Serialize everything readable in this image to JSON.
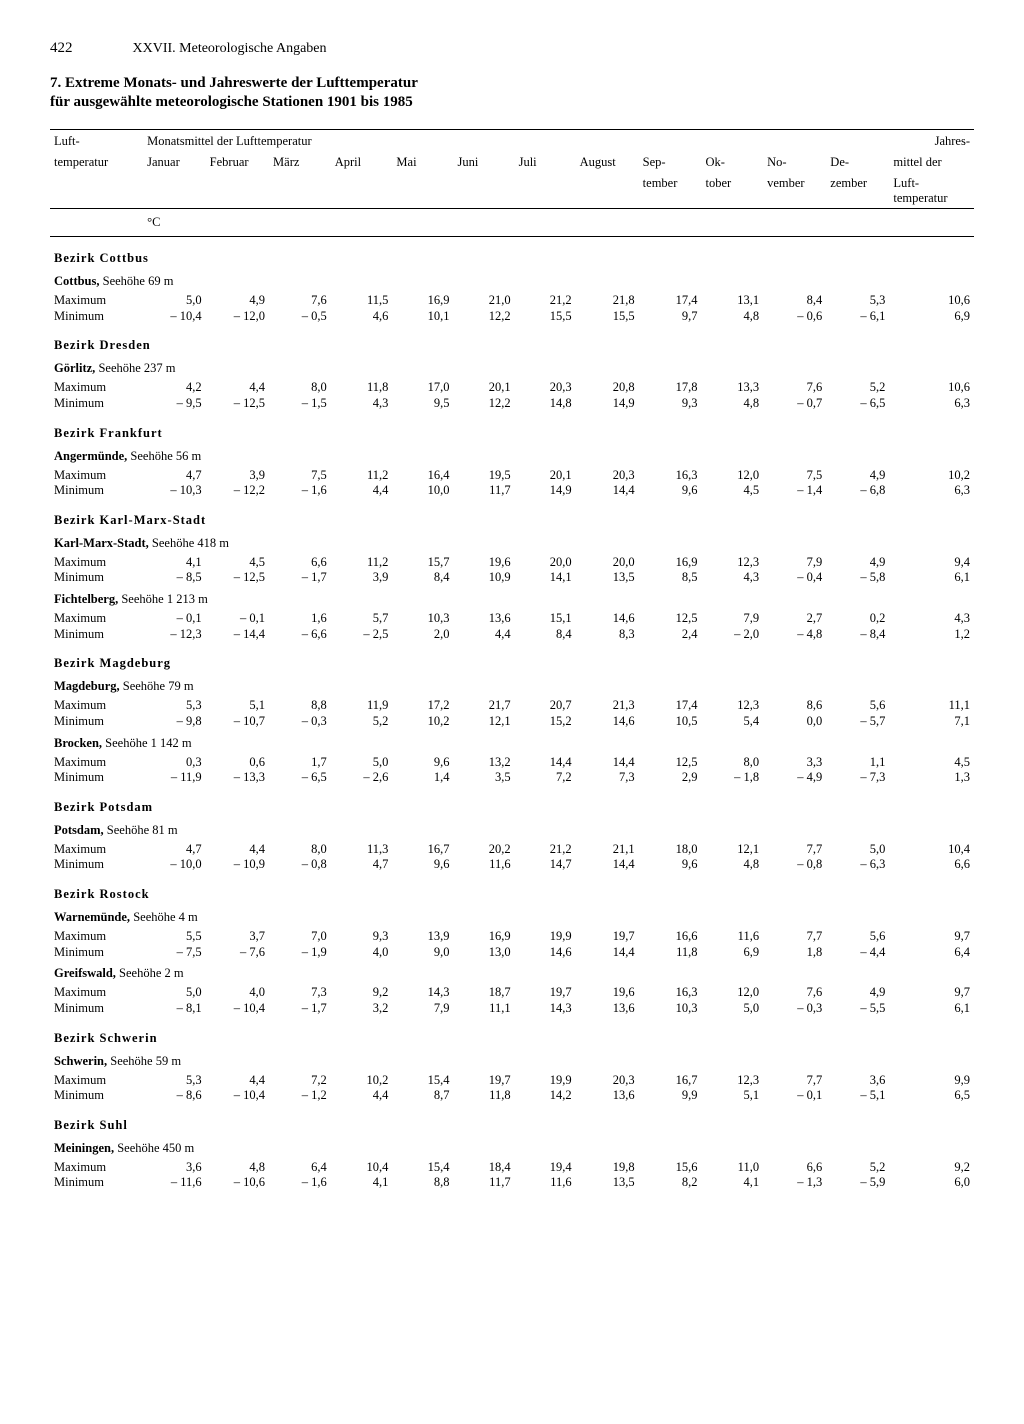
{
  "page_number": "422",
  "chapter": "XXVII. Meteorologische Angaben",
  "title_line1": "7. Extreme Monats- und Jahreswerte der Lufttemperatur",
  "title_line2": "für ausgewählte meteorologische Stationen 1901 bis 1985",
  "header": {
    "row_label": "Luft-",
    "row_label2": "temperatur",
    "group_label": "Monatsmittel der Lufttemperatur",
    "annual_label": "Jahres-",
    "annual_label2": "mittel der",
    "annual_label3": "Luft-",
    "annual_label4": "temperatur",
    "months": [
      "Januar",
      "Februar",
      "März",
      "April",
      "Mai",
      "Juni",
      "Juli",
      "August",
      "Sep-",
      "Ok-",
      "No-",
      "De-"
    ],
    "months_line2": [
      "",
      "",
      "",
      "",
      "",
      "",
      "",
      "",
      "tember",
      "tober",
      "vember",
      "zember"
    ],
    "unit": "°C"
  },
  "labels": {
    "max": "Maximum",
    "min": "Minimum"
  },
  "sections": [
    {
      "bezirk": "Bezirk Cottbus",
      "stations": [
        {
          "name": "Cottbus,",
          "elevation": "Seehöhe 69 m",
          "max": [
            "5,0",
            "4,9",
            "7,6",
            "11,5",
            "16,9",
            "21,0",
            "21,2",
            "21,8",
            "17,4",
            "13,1",
            "8,4",
            "5,3",
            "10,6"
          ],
          "min": [
            "– 10,4",
            "– 12,0",
            "– 0,5",
            "4,6",
            "10,1",
            "12,2",
            "15,5",
            "15,5",
            "9,7",
            "4,8",
            "– 0,6",
            "– 6,1",
            "6,9"
          ]
        }
      ]
    },
    {
      "bezirk": "Bezirk Dresden",
      "stations": [
        {
          "name": "Görlitz,",
          "elevation": "Seehöhe 237 m",
          "max": [
            "4,2",
            "4,4",
            "8,0",
            "11,8",
            "17,0",
            "20,1",
            "20,3",
            "20,8",
            "17,8",
            "13,3",
            "7,6",
            "5,2",
            "10,6"
          ],
          "min": [
            "– 9,5",
            "– 12,5",
            "– 1,5",
            "4,3",
            "9,5",
            "12,2",
            "14,8",
            "14,9",
            "9,3",
            "4,8",
            "– 0,7",
            "– 6,5",
            "6,3"
          ]
        }
      ]
    },
    {
      "bezirk": "Bezirk Frankfurt",
      "stations": [
        {
          "name": "Angermünde,",
          "elevation": "Seehöhe 56 m",
          "max": [
            "4,7",
            "3,9",
            "7,5",
            "11,2",
            "16,4",
            "19,5",
            "20,1",
            "20,3",
            "16,3",
            "12,0",
            "7,5",
            "4,9",
            "10,2"
          ],
          "min": [
            "– 10,3",
            "– 12,2",
            "– 1,6",
            "4,4",
            "10,0",
            "11,7",
            "14,9",
            "14,4",
            "9,6",
            "4,5",
            "– 1,4",
            "– 6,8",
            "6,3"
          ]
        }
      ]
    },
    {
      "bezirk": "Bezirk Karl-Marx-Stadt",
      "stations": [
        {
          "name": "Karl-Marx-Stadt,",
          "elevation": "Seehöhe 418 m",
          "max": [
            "4,1",
            "4,5",
            "6,6",
            "11,2",
            "15,7",
            "19,6",
            "20,0",
            "20,0",
            "16,9",
            "12,3",
            "7,9",
            "4,9",
            "9,4"
          ],
          "min": [
            "– 8,5",
            "– 12,5",
            "– 1,7",
            "3,9",
            "8,4",
            "10,9",
            "14,1",
            "13,5",
            "8,5",
            "4,3",
            "– 0,4",
            "– 5,8",
            "6,1"
          ]
        },
        {
          "name": "Fichtelberg,",
          "elevation": "Seehöhe 1 213 m",
          "max": [
            "– 0,1",
            "– 0,1",
            "1,6",
            "5,7",
            "10,3",
            "13,6",
            "15,1",
            "14,6",
            "12,5",
            "7,9",
            "2,7",
            "0,2",
            "4,3"
          ],
          "min": [
            "– 12,3",
            "– 14,4",
            "– 6,6",
            "– 2,5",
            "2,0",
            "4,4",
            "8,4",
            "8,3",
            "2,4",
            "– 2,0",
            "– 4,8",
            "– 8,4",
            "1,2"
          ]
        }
      ]
    },
    {
      "bezirk": "Bezirk Magdeburg",
      "stations": [
        {
          "name": "Magdeburg,",
          "elevation": "Seehöhe 79 m",
          "max": [
            "5,3",
            "5,1",
            "8,8",
            "11,9",
            "17,2",
            "21,7",
            "20,7",
            "21,3",
            "17,4",
            "12,3",
            "8,6",
            "5,6",
            "11,1"
          ],
          "min": [
            "– 9,8",
            "– 10,7",
            "– 0,3",
            "5,2",
            "10,2",
            "12,1",
            "15,2",
            "14,6",
            "10,5",
            "5,4",
            "0,0",
            "– 5,7",
            "7,1"
          ]
        },
        {
          "name": "Brocken,",
          "elevation": "Seehöhe 1 142 m",
          "max": [
            "0,3",
            "0,6",
            "1,7",
            "5,0",
            "9,6",
            "13,2",
            "14,4",
            "14,4",
            "12,5",
            "8,0",
            "3,3",
            "1,1",
            "4,5"
          ],
          "min": [
            "– 11,9",
            "– 13,3",
            "– 6,5",
            "– 2,6",
            "1,4",
            "3,5",
            "7,2",
            "7,3",
            "2,9",
            "– 1,8",
            "– 4,9",
            "– 7,3",
            "1,3"
          ]
        }
      ]
    },
    {
      "bezirk": "Bezirk Potsdam",
      "stations": [
        {
          "name": "Potsdam,",
          "elevation": "Seehöhe 81 m",
          "max": [
            "4,7",
            "4,4",
            "8,0",
            "11,3",
            "16,7",
            "20,2",
            "21,2",
            "21,1",
            "18,0",
            "12,1",
            "7,7",
            "5,0",
            "10,4"
          ],
          "min": [
            "– 10,0",
            "– 10,9",
            "– 0,8",
            "4,7",
            "9,6",
            "11,6",
            "14,7",
            "14,4",
            "9,6",
            "4,8",
            "– 0,8",
            "– 6,3",
            "6,6"
          ]
        }
      ]
    },
    {
      "bezirk": "Bezirk Rostock",
      "stations": [
        {
          "name": "Warnemünde,",
          "elevation": "Seehöhe 4 m",
          "max": [
            "5,5",
            "3,7",
            "7,0",
            "9,3",
            "13,9",
            "16,9",
            "19,9",
            "19,7",
            "16,6",
            "11,6",
            "7,7",
            "5,6",
            "9,7"
          ],
          "min": [
            "– 7,5",
            "– 7,6",
            "– 1,9",
            "4,0",
            "9,0",
            "13,0",
            "14,6",
            "14,4",
            "11,8",
            "6,9",
            "1,8",
            "– 4,4",
            "6,4"
          ]
        },
        {
          "name": "Greifswald,",
          "elevation": "Seehöhe 2 m",
          "max": [
            "5,0",
            "4,0",
            "7,3",
            "9,2",
            "14,3",
            "18,7",
            "19,7",
            "19,6",
            "16,3",
            "12,0",
            "7,6",
            "4,9",
            "9,7"
          ],
          "min": [
            "– 8,1",
            "– 10,4",
            "– 1,7",
            "3,2",
            "7,9",
            "11,1",
            "14,3",
            "13,6",
            "10,3",
            "5,0",
            "– 0,3",
            "– 5,5",
            "6,1"
          ]
        }
      ]
    },
    {
      "bezirk": "Bezirk Schwerin",
      "stations": [
        {
          "name": "Schwerin,",
          "elevation": "Seehöhe 59 m",
          "max": [
            "5,3",
            "4,4",
            "7,2",
            "10,2",
            "15,4",
            "19,7",
            "19,9",
            "20,3",
            "16,7",
            "12,3",
            "7,7",
            "3,6",
            "9,9"
          ],
          "min": [
            "– 8,6",
            "– 10,4",
            "– 1,2",
            "4,4",
            "8,7",
            "11,8",
            "14,2",
            "13,6",
            "9,9",
            "5,1",
            "– 0,1",
            "– 5,1",
            "6,5"
          ]
        }
      ]
    },
    {
      "bezirk": "Bezirk Suhl",
      "stations": [
        {
          "name": "Meiningen,",
          "elevation": "Seehöhe 450 m",
          "max": [
            "3,6",
            "4,8",
            "6,4",
            "10,4",
            "15,4",
            "18,4",
            "19,4",
            "19,8",
            "15,6",
            "11,0",
            "6,6",
            "5,2",
            "9,2"
          ],
          "min": [
            "– 11,6",
            "– 10,6",
            "– 1,6",
            "4,1",
            "8,8",
            "11,7",
            "11,6",
            "13,5",
            "8,2",
            "4,1",
            "– 1,3",
            "– 5,9",
            "6,0"
          ]
        }
      ]
    }
  ]
}
